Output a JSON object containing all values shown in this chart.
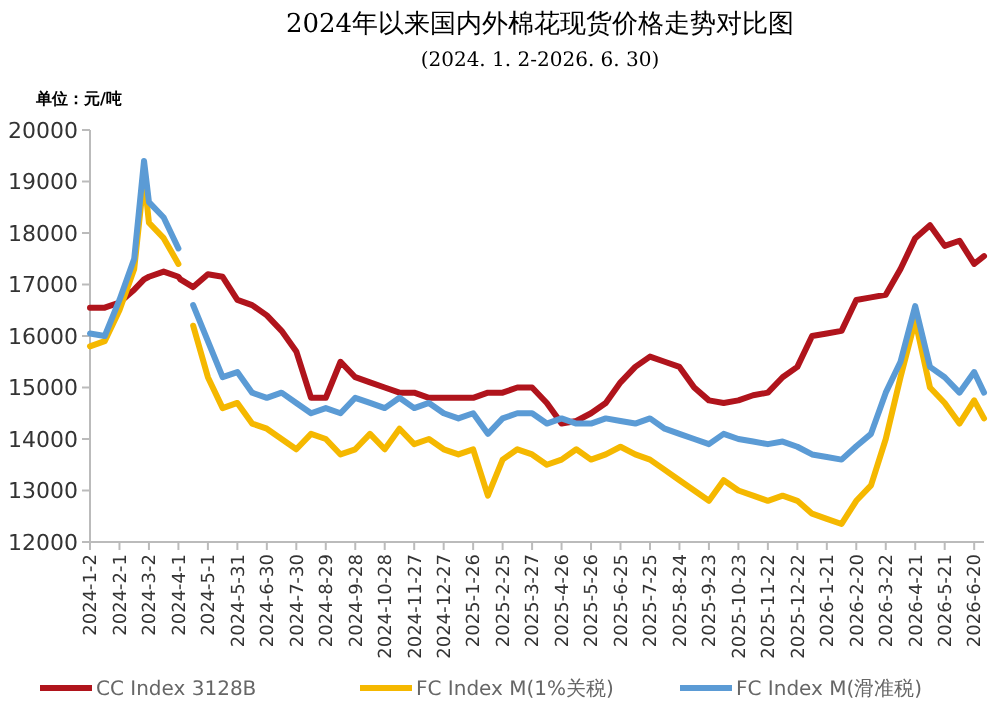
{
  "chart_data": {
    "type": "line",
    "title": "2024年以来国内外棉花现货价格走势对比图",
    "subtitle": "(2024. 1. 2-2026. 6. 30)",
    "ylabel": "单位：元/吨",
    "x": [
      "2024-01-02",
      "2024-01-17",
      "2024-02-01",
      "2024-02-16",
      "2024-02-26",
      "2024-03-02",
      "2024-03-17",
      "2024-04-01",
      "2024-04-03",
      "2024-04-16",
      "2024-05-01",
      "2024-05-16",
      "2024-05-31",
      "2024-06-15",
      "2024-06-30",
      "2024-07-15",
      "2024-07-30",
      "2024-08-14",
      "2024-08-29",
      "2024-09-13",
      "2024-09-28",
      "2024-10-13",
      "2024-10-28",
      "2024-11-12",
      "2024-11-27",
      "2024-12-12",
      "2024-12-27",
      "2025-01-11",
      "2025-01-26",
      "2025-02-10",
      "2025-02-25",
      "2025-03-12",
      "2025-03-27",
      "2025-04-11",
      "2025-04-26",
      "2025-05-11",
      "2025-05-26",
      "2025-06-10",
      "2025-06-25",
      "2025-07-10",
      "2025-07-25",
      "2025-08-09",
      "2025-08-24",
      "2025-09-08",
      "2025-09-23",
      "2025-10-08",
      "2025-10-23",
      "2025-11-07",
      "2025-11-22",
      "2025-12-07",
      "2025-12-22",
      "2026-01-06",
      "2026-01-21",
      "2026-02-05",
      "2026-02-20",
      "2026-03-07",
      "2026-03-22",
      "2026-04-06",
      "2026-04-21",
      "2026-05-06",
      "2026-05-21",
      "2026-06-05",
      "2026-06-20",
      "2026-06-30"
    ],
    "series": [
      {
        "name": "CC Index 3128B",
        "color": "#b0141c",
        "values": [
          16550,
          16550,
          16650,
          16900,
          17100,
          17150,
          17250,
          17150,
          17100,
          16950,
          17200,
          17150,
          16700,
          16600,
          16400,
          16100,
          15700,
          14800,
          14800,
          15500,
          15200,
          15100,
          15000,
          14900,
          14900,
          14800,
          14800,
          14800,
          14800,
          14900,
          14900,
          15000,
          15000,
          14700,
          14300,
          14350,
          14500,
          14700,
          15100,
          15400,
          15600,
          15500,
          15400,
          15000,
          14750,
          14700,
          14750,
          14850,
          14900,
          15200,
          15400,
          16000,
          16050,
          16100,
          16700,
          16750,
          16800,
          17300,
          17900,
          18150,
          17750,
          17850,
          17400,
          17550
        ]
      },
      {
        "name": "FC Index M(1%关税)",
        "color": "#f5b800",
        "values": [
          15800,
          15900,
          16500,
          17300,
          19100,
          18200,
          17900,
          17400,
          null,
          16200,
          15200,
          14600,
          14700,
          14300,
          14200,
          14000,
          13800,
          14100,
          14000,
          13700,
          13800,
          14100,
          13800,
          14200,
          13900,
          14000,
          13800,
          13700,
          13800,
          12900,
          13600,
          13800,
          13700,
          13500,
          13600,
          13800,
          13600,
          13700,
          13850,
          13700,
          13600,
          13400,
          13200,
          13000,
          12800,
          13200,
          13000,
          12900,
          12800,
          12900,
          12800,
          12550,
          12450,
          12350,
          12800,
          13100,
          14000,
          15200,
          16300,
          15000,
          14700,
          14300,
          14750,
          14400
        ]
      },
      {
        "name": "FC Index M(滑准税)",
        "color": "#5b9bd5",
        "values": [
          16050,
          16000,
          16700,
          17500,
          19400,
          18600,
          18300,
          17700,
          null,
          16600,
          15900,
          15200,
          15300,
          14900,
          14800,
          14900,
          14700,
          14500,
          14600,
          14500,
          14800,
          14700,
          14600,
          14800,
          14600,
          14700,
          14500,
          14400,
          14500,
          14100,
          14400,
          14500,
          14500,
          14300,
          14400,
          14300,
          14300,
          14400,
          14350,
          14300,
          14400,
          14200,
          14100,
          14000,
          13900,
          14100,
          14000,
          13950,
          13900,
          13950,
          13850,
          13700,
          13650,
          13600,
          13860,
          14100,
          14900,
          15500,
          16580,
          15400,
          15200,
          14900,
          15300,
          14900
        ]
      }
    ],
    "ylim": [
      12000,
      20000
    ],
    "yticks": [
      12000,
      13000,
      14000,
      15000,
      16000,
      17000,
      18000,
      19000,
      20000
    ],
    "xlim": [
      "2024-01-02",
      "2026-06-30"
    ],
    "xticks": [
      {
        "value": "2024-01-02",
        "label": "2024-1-2"
      },
      {
        "value": "2024-02-01",
        "label": "2024-2-1"
      },
      {
        "value": "2024-03-02",
        "label": "2024-3-2"
      },
      {
        "value": "2024-04-01",
        "label": "2024-4-1"
      },
      {
        "value": "2024-05-01",
        "label": "2024-5-1"
      },
      {
        "value": "2024-05-31",
        "label": "2024-5-31"
      },
      {
        "value": "2024-06-30",
        "label": "2024-6-30"
      },
      {
        "value": "2024-07-30",
        "label": "2024-7-30"
      },
      {
        "value": "2024-08-29",
        "label": "2024-8-29"
      },
      {
        "value": "2024-09-28",
        "label": "2024-9-28"
      },
      {
        "value": "2024-10-28",
        "label": "2024-10-28"
      },
      {
        "value": "2024-11-27",
        "label": "2024-11-27"
      },
      {
        "value": "2024-12-27",
        "label": "2024-12-27"
      },
      {
        "value": "2025-01-26",
        "label": "2025-1-26"
      },
      {
        "value": "2025-02-25",
        "label": "2025-2-25"
      },
      {
        "value": "2025-03-27",
        "label": "2025-3-27"
      },
      {
        "value": "2025-04-26",
        "label": "2025-4-26"
      },
      {
        "value": "2025-05-26",
        "label": "2025-5-26"
      },
      {
        "value": "2025-06-25",
        "label": "2025-6-25"
      },
      {
        "value": "2025-07-25",
        "label": "2025-7-25"
      },
      {
        "value": "2025-08-24",
        "label": "2025-8-24"
      },
      {
        "value": "2025-09-23",
        "label": "2025-9-23"
      },
      {
        "value": "2025-10-23",
        "label": "2025-10-23"
      },
      {
        "value": "2025-11-22",
        "label": "2025-11-22"
      },
      {
        "value": "2025-12-22",
        "label": "2025-12-22"
      },
      {
        "value": "2026-01-21",
        "label": "2026-1-21"
      },
      {
        "value": "2026-02-20",
        "label": "2026-2-20"
      },
      {
        "value": "2026-03-22",
        "label": "2026-3-22"
      },
      {
        "value": "2026-04-21",
        "label": "2026-4-21"
      },
      {
        "value": "2026-05-21",
        "label": "2026-5-21"
      },
      {
        "value": "2026-06-20",
        "label": "2026-6-20"
      }
    ],
    "grid": false,
    "legend": "bottom",
    "line_style": "solid",
    "marker": "none"
  }
}
